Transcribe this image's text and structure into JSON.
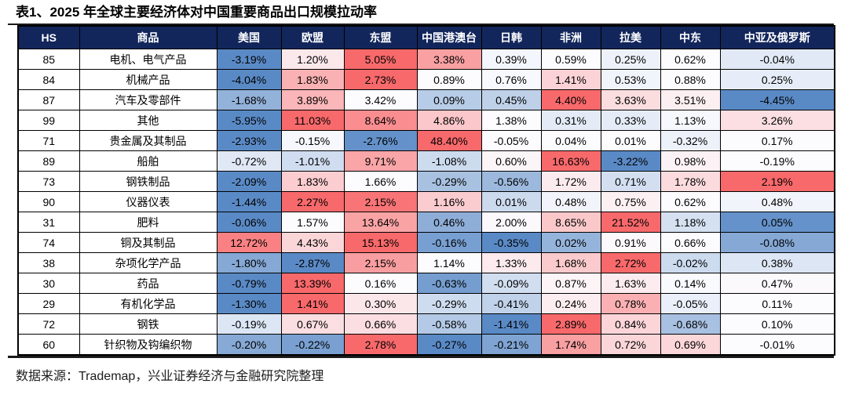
{
  "title": "表1、2025 年全球主要经济体对中国重要商品出口规模拉动率",
  "source_note": "数据来源：Trademap，兴业证券经济与金融研究院整理",
  "colors": {
    "header_bg": "#12265C",
    "header_text": "#FFFFFF",
    "zebra_gray": "#EFEFEF",
    "border": "#000000",
    "scale_min_blue": "#5A8AC6",
    "scale_mid_white": "#FCFCFF",
    "scale_max_red": "#F8696B"
  },
  "chart_data": {
    "type": "table",
    "title": "表1、2025 年全球主要经济体对中国重要商品出口规模拉动率",
    "unit": "%",
    "value_format": "2 decimals + %",
    "color_scale": {
      "scope": "per-row",
      "min_color": "#5A8AC6",
      "mid_color": "#FCFCFF",
      "max_color": "#F8696B",
      "midpoint": "row median"
    },
    "columns": [
      "HS",
      "商品",
      "美国",
      "欧盟",
      "东盟",
      "中国港澳台",
      "日韩",
      "非洲",
      "拉美",
      "中东",
      "中亚及俄罗斯"
    ],
    "rows": [
      {
        "hs": "85",
        "commodity": "电机、电气产品",
        "values": [
          -3.19,
          1.2,
          5.05,
          3.38,
          0.39,
          0.59,
          0.25,
          0.62,
          -0.04
        ]
      },
      {
        "hs": "84",
        "commodity": "机械产品",
        "values": [
          -4.04,
          1.83,
          2.73,
          0.89,
          0.76,
          1.41,
          0.53,
          0.88,
          0.25
        ]
      },
      {
        "hs": "87",
        "commodity": "汽车及零部件",
        "values": [
          -1.68,
          3.89,
          3.42,
          0.09,
          0.45,
          4.4,
          3.63,
          3.51,
          -4.45
        ]
      },
      {
        "hs": "99",
        "commodity": "其他",
        "values": [
          -5.95,
          11.03,
          8.64,
          4.86,
          1.38,
          0.31,
          0.33,
          1.13,
          3.26
        ]
      },
      {
        "hs": "71",
        "commodity": "贵金属及其制品",
        "values": [
          -2.93,
          -0.15,
          -2.76,
          48.4,
          -0.05,
          0.04,
          0.01,
          -0.32,
          0.17
        ]
      },
      {
        "hs": "89",
        "commodity": "船舶",
        "values": [
          -0.72,
          -1.01,
          9.71,
          -1.08,
          0.6,
          16.63,
          -3.22,
          0.98,
          -0.19
        ]
      },
      {
        "hs": "73",
        "commodity": "钢铁制品",
        "values": [
          -2.09,
          1.83,
          1.66,
          -0.29,
          -0.56,
          1.72,
          0.71,
          1.78,
          2.19
        ]
      },
      {
        "hs": "90",
        "commodity": "仪器仪表",
        "values": [
          -1.44,
          2.27,
          2.15,
          1.16,
          0.01,
          0.48,
          0.75,
          0.62,
          0.48
        ]
      },
      {
        "hs": "31",
        "commodity": "肥料",
        "values": [
          -0.06,
          1.57,
          13.64,
          0.46,
          2.0,
          8.65,
          21.52,
          1.18,
          0.05
        ]
      },
      {
        "hs": "74",
        "commodity": "铜及其制品",
        "values": [
          12.72,
          4.43,
          15.13,
          -0.16,
          -0.35,
          0.02,
          0.91,
          0.66,
          -0.08
        ]
      },
      {
        "hs": "38",
        "commodity": "杂项化学产品",
        "values": [
          -1.8,
          -2.87,
          2.15,
          1.14,
          1.33,
          1.68,
          2.72,
          -0.02,
          0.38
        ]
      },
      {
        "hs": "30",
        "commodity": "药品",
        "values": [
          -0.79,
          13.39,
          0.16,
          -0.63,
          -0.09,
          0.87,
          1.63,
          0.14,
          0.47
        ]
      },
      {
        "hs": "29",
        "commodity": "有机化学品",
        "values": [
          -1.3,
          1.41,
          0.3,
          -0.29,
          -0.41,
          0.24,
          0.78,
          -0.05,
          0.11
        ]
      },
      {
        "hs": "72",
        "commodity": "钢铁",
        "values": [
          -0.19,
          0.67,
          0.66,
          -0.58,
          -1.41,
          2.89,
          0.84,
          -0.68,
          0.1
        ]
      },
      {
        "hs": "60",
        "commodity": "针织物及钩编织物",
        "values": [
          -0.2,
          -0.22,
          2.78,
          -0.27,
          -0.21,
          1.74,
          0.72,
          0.69,
          -0.01
        ]
      }
    ]
  }
}
